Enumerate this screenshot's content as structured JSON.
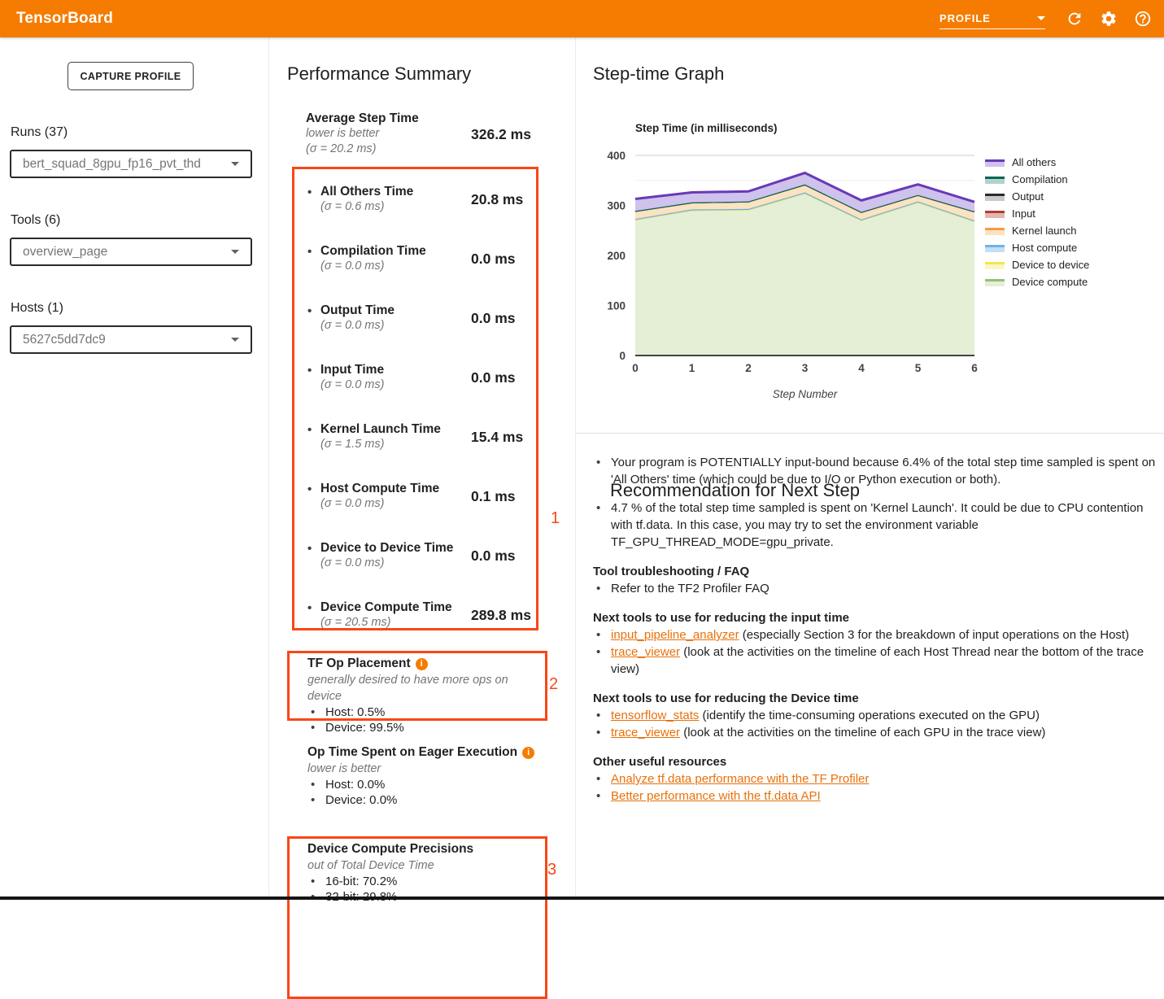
{
  "colors": {
    "header_bg": "#f57c00",
    "annotation_red": "#fa4616",
    "link_orange": "#e8710a",
    "info_icon": "#f57c00"
  },
  "header": {
    "title": "TensorBoard",
    "dashboard_selected": "PROFILE",
    "icons": [
      "refresh-icon",
      "settings-icon",
      "help-icon"
    ]
  },
  "sidebar": {
    "capture_button": "CAPTURE PROFILE",
    "runs_label": "Runs (37)",
    "runs_value": "bert_squad_8gpu_fp16_pvt_thd",
    "tools_label": "Tools (6)",
    "tools_value": "overview_page",
    "hosts_label": "Hosts (1)",
    "hosts_value": "5627c5dd7dc9"
  },
  "performance_summary": {
    "title": "Performance Summary",
    "metrics": [
      {
        "label": "Average Step Time",
        "sub": "lower is better",
        "sigma": "(σ = 20.2 ms)",
        "value": "326.2 ms"
      },
      {
        "label": "All Others Time",
        "sigma": "(σ = 0.6 ms)",
        "value": "20.8 ms"
      },
      {
        "label": "Compilation Time",
        "sigma": "(σ = 0.0 ms)",
        "value": "0.0 ms"
      },
      {
        "label": "Output Time",
        "sigma": "(σ = 0.0 ms)",
        "value": "0.0 ms"
      },
      {
        "label": "Input Time",
        "sigma": "(σ = 0.0 ms)",
        "value": "0.0 ms"
      },
      {
        "label": "Kernel Launch Time",
        "sigma": "(σ = 1.5 ms)",
        "value": "15.4 ms"
      },
      {
        "label": "Host Compute Time",
        "sigma": "(σ = 0.0 ms)",
        "value": "0.1 ms"
      },
      {
        "label": "Device to Device Time",
        "sigma": "(σ = 0.0 ms)",
        "value": "0.0 ms"
      },
      {
        "label": "Device Compute Time",
        "sigma": "(σ = 20.5 ms)",
        "value": "289.8 ms"
      }
    ],
    "annotations": [
      "1",
      "2",
      "3"
    ],
    "tf_op_placement": {
      "title": "TF Op Placement",
      "has_info_icon": true,
      "subtitle": "generally desired to have more ops on device",
      "items": [
        "Host: 0.5%",
        "Device: 99.5%"
      ]
    },
    "eager_execution": {
      "title": "Op Time Spent on Eager Execution",
      "has_info_icon": true,
      "subtitle": "lower is better",
      "items": [
        "Host: 0.0%",
        "Device: 0.0%"
      ]
    },
    "compute_precisions": {
      "title": "Device Compute Precisions",
      "has_info_icon": false,
      "subtitle": "out of Total Device Time",
      "items": [
        "16-bit: 70.2%",
        "32-bit: 29.8%"
      ]
    }
  },
  "step_time_graph": {
    "section_title": "Step-time Graph",
    "chart_data": {
      "type": "area",
      "stacked": true,
      "title": "Step Time (in milliseconds)",
      "xlabel": "Step Number",
      "ylabel": "",
      "x": [
        0,
        1,
        2,
        3,
        4,
        5,
        6
      ],
      "xticks": [
        "0",
        "1",
        "2",
        "3",
        "4",
        "5",
        "6"
      ],
      "ylim": [
        0,
        400
      ],
      "yticks": [
        "0",
        "100",
        "200",
        "300",
        "400"
      ],
      "grid": true,
      "legend_position": "right",
      "series": [
        {
          "name": "All others",
          "stroke": "#673ab7",
          "fill": "#cfc2ec",
          "values": [
            24,
            20,
            20,
            23,
            23,
            21,
            19
          ]
        },
        {
          "name": "Compilation",
          "stroke": "#0b6656",
          "fill": "#b2d3cc",
          "values": [
            0,
            0,
            0,
            0,
            0,
            0,
            0
          ]
        },
        {
          "name": "Output",
          "stroke": "#2b2b2b",
          "fill": "#c9c9c9",
          "values": [
            0,
            0,
            0,
            0,
            0,
            0,
            0
          ]
        },
        {
          "name": "Input",
          "stroke": "#b23b32",
          "fill": "#e4b6b2",
          "values": [
            0,
            0,
            0,
            0,
            0,
            0,
            0
          ]
        },
        {
          "name": "Kernel launch",
          "stroke": "#f59b42",
          "fill": "#fbe2c0",
          "values": [
            16,
            14,
            15,
            16,
            15,
            13,
            18
          ]
        },
        {
          "name": "Host compute",
          "stroke": "#70b1e8",
          "fill": "#c4def5",
          "values": [
            1,
            1,
            1,
            1,
            1,
            1,
            1
          ]
        },
        {
          "name": "Device to device",
          "stroke": "#f3e64a",
          "fill": "#fbf6c9",
          "values": [
            0,
            0,
            0,
            0,
            0,
            0,
            0
          ]
        },
        {
          "name": "Device compute",
          "stroke": "#94bf77",
          "fill": "#e4efd5",
          "values": [
            272,
            291,
            292,
            325,
            271,
            307,
            269
          ]
        }
      ]
    }
  },
  "recommendation": {
    "title": "Recommendation for Next Step",
    "bullets": [
      "Your program is POTENTIALLY input-bound because 6.4% of the total step time sampled is spent on 'All Others' time (which could be due to I/O or Python execution or both).",
      "4.7 % of the total step time sampled is spent on 'Kernel Launch'. It could be due to CPU contention with tf.data. In this case, you may try to set the environment variable TF_GPU_THREAD_MODE=gpu_private."
    ],
    "sections": [
      {
        "heading": "Tool troubleshooting / FAQ",
        "items": [
          {
            "link": "",
            "text": "Refer to the TF2 Profiler FAQ"
          }
        ]
      },
      {
        "heading": "Next tools to use for reducing the input time",
        "items": [
          {
            "link": "input_pipeline_analyzer",
            "text": " (especially Section 3 for the breakdown of input operations on the Host)"
          },
          {
            "link": "trace_viewer",
            "text": " (look at the activities on the timeline of each Host Thread near the bottom of the trace view)"
          }
        ]
      },
      {
        "heading": "Next tools to use for reducing the Device time",
        "items": [
          {
            "link": "tensorflow_stats",
            "text": " (identify the time-consuming operations executed on the GPU)"
          },
          {
            "link": "trace_viewer",
            "text": " (look at the activities on the timeline of each GPU in the trace view)"
          }
        ]
      },
      {
        "heading": "Other useful resources",
        "items": [
          {
            "link": "Analyze tf.data performance with the TF Profiler",
            "text": ""
          },
          {
            "link": "Better performance with the tf.data API",
            "text": ""
          }
        ]
      }
    ]
  }
}
